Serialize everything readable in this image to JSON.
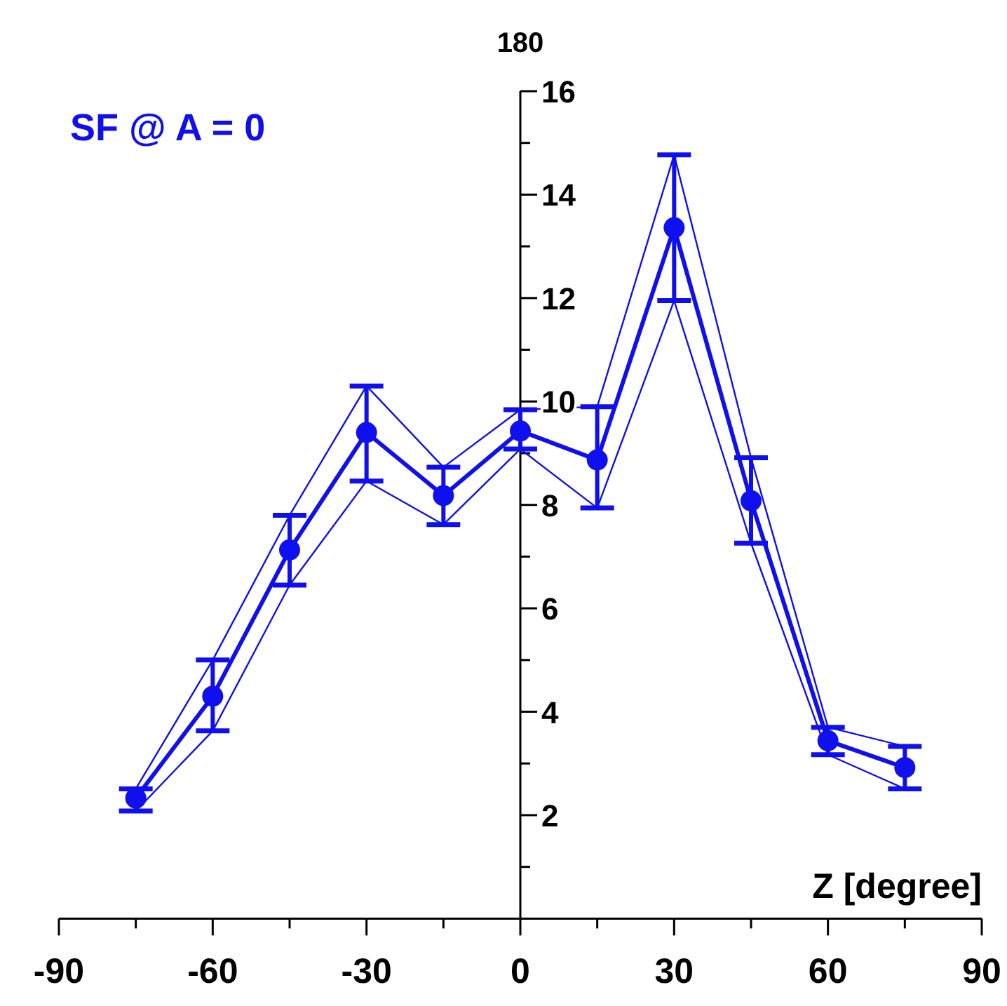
{
  "chart_data": {
    "type": "line",
    "title": "SF  @  A = 0",
    "xlabel": "Z [degree]",
    "annotations": [
      "180"
    ],
    "x": [
      -75,
      -60,
      -45,
      -30,
      -15,
      0,
      15,
      30,
      45,
      60,
      75
    ],
    "series": [
      {
        "color": "#1010ee",
        "marker": "circle",
        "values": [
          2.33,
          4.3,
          7.13,
          9.4,
          8.18,
          9.43,
          8.87,
          13.36,
          8.08,
          3.44,
          2.92
        ],
        "errors": [
          [
            2.08,
            2.51
          ],
          [
            3.63,
            5.0
          ],
          [
            6.45,
            7.8
          ],
          [
            8.46,
            10.3
          ],
          [
            7.62,
            8.73
          ],
          [
            9.08,
            9.84
          ],
          [
            7.94,
            9.9
          ],
          [
            11.95,
            14.77
          ],
          [
            7.26,
            8.91
          ],
          [
            3.17,
            3.7
          ],
          [
            2.51,
            3.33
          ]
        ]
      },
      {
        "color": "#1010ee",
        "marker": "none",
        "values": [
          2.08,
          3.63,
          6.45,
          8.46,
          7.62,
          9.08,
          7.94,
          11.95,
          7.26,
          3.17,
          2.51
        ]
      },
      {
        "color": "#1010ee",
        "marker": "none",
        "values": [
          2.51,
          5.0,
          7.8,
          10.3,
          8.73,
          9.84,
          9.9,
          14.77,
          8.91,
          3.7,
          3.33
        ]
      }
    ],
    "xlim": [
      -90,
      90
    ],
    "xticks": [
      -90,
      {
        "value": -75,
        "label": null
      },
      -60,
      {
        "value": -45,
        "label": null
      },
      -30,
      {
        "value": -15,
        "label": null
      },
      0,
      {
        "value": 15,
        "label": null
      },
      30,
      {
        "value": 45,
        "label": null
      },
      60,
      {
        "value": 75,
        "label": null
      },
      90
    ],
    "ylim": [
      0,
      16
    ],
    "yticks": [
      {
        "value": 1,
        "label": null
      },
      2,
      {
        "value": 3,
        "label": null
      },
      4,
      {
        "value": 5,
        "label": null
      },
      6,
      {
        "value": 7,
        "label": null
      },
      8,
      {
        "value": 9,
        "label": null
      },
      10,
      {
        "value": 11,
        "label": null
      },
      12,
      {
        "value": 13,
        "label": null
      },
      14,
      {
        "value": 15,
        "label": null
      },
      16
    ],
    "grid": false
  }
}
